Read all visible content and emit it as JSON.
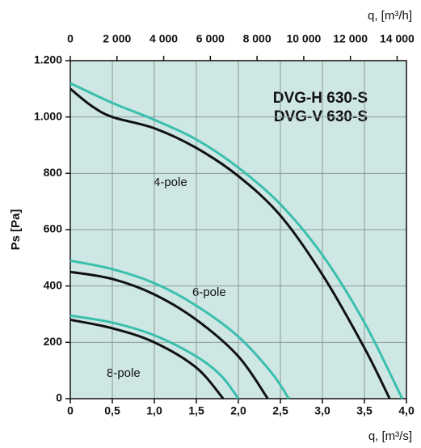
{
  "chart_data": {
    "type": "line",
    "xlabel": "q, [m³/s]",
    "x2label": "q, [m³/h]",
    "ylabel": "Ps [Pa]",
    "xlim": [
      0,
      4.0
    ],
    "xticks": [
      0,
      {
        "value": 0.5,
        "label": "0,5"
      },
      {
        "value": 1.0,
        "label": "1,0"
      },
      {
        "value": 1.5,
        "label": "1,5"
      },
      {
        "value": 2.0,
        "label": "2,0"
      },
      {
        "value": 2.5,
        "label": "2,5"
      },
      {
        "value": 3.0,
        "label": "3,0"
      },
      {
        "value": 3.5,
        "label": "3,5"
      },
      {
        "value": 4.0,
        "label": "4,0"
      }
    ],
    "x2lim": [
      0,
      14400
    ],
    "x2ticks": [
      0,
      {
        "value": 2000,
        "label": "2 000"
      },
      {
        "value": 4000,
        "label": "4 000"
      },
      {
        "value": 6000,
        "label": "6 000"
      },
      {
        "value": 8000,
        "label": "8 000"
      },
      {
        "value": 10000,
        "label": "10 000"
      },
      {
        "value": 12000,
        "label": "12 000"
      },
      {
        "value": 14000,
        "label": "14 000"
      }
    ],
    "ylim": [
      0,
      1200
    ],
    "yticks": [
      0,
      200,
      400,
      600,
      800,
      {
        "value": 1000,
        "label": "1.000"
      },
      {
        "value": 1200,
        "label": "1.200"
      }
    ],
    "grid": true,
    "legend": [
      {
        "name": "DVG-H 630-S",
        "color": "#3bbfad"
      },
      {
        "name": "DVG-V 630-S",
        "color": "#111111"
      }
    ],
    "annotations": [
      "4-pole",
      "6-pole",
      "8-pole"
    ],
    "series": [
      {
        "color": "#3bbfad",
        "x": [
          0,
          0.5,
          1.0,
          1.5,
          2.0,
          2.5,
          3.0,
          3.5,
          3.95
        ],
        "values": [
          1120,
          1050,
          990,
          920,
          820,
          690,
          510,
          270,
          0
        ]
      },
      {
        "color": "#111111",
        "x": [
          0,
          0.25,
          0.5,
          1.0,
          1.5,
          2.0,
          2.5,
          3.0,
          3.5,
          3.8
        ],
        "values": [
          1100,
          1040,
          1000,
          960,
          890,
          790,
          650,
          440,
          180,
          0
        ]
      },
      {
        "color": "#3bbfad",
        "x": [
          0,
          0.5,
          1.0,
          1.5,
          2.0,
          2.4,
          2.6
        ],
        "values": [
          490,
          460,
          410,
          330,
          220,
          90,
          0
        ]
      },
      {
        "color": "#111111",
        "x": [
          0,
          0.5,
          1.0,
          1.5,
          2.0,
          2.35
        ],
        "values": [
          450,
          425,
          370,
          280,
          150,
          0
        ]
      },
      {
        "color": "#3bbfad",
        "x": [
          0,
          0.5,
          1.0,
          1.5,
          1.8,
          2.0
        ],
        "values": [
          295,
          270,
          225,
          150,
          80,
          0
        ]
      },
      {
        "color": "#111111",
        "x": [
          0,
          0.5,
          1.0,
          1.5,
          1.82
        ],
        "values": [
          280,
          250,
          200,
          110,
          0
        ]
      }
    ]
  }
}
